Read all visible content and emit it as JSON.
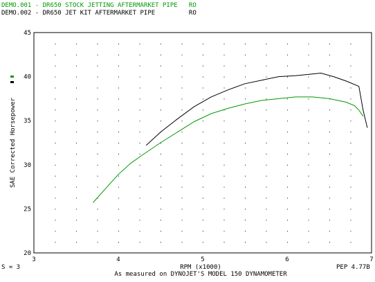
{
  "legend": [
    {
      "id": "DEMO.001",
      "text": "DEMO.001 - DR650 STOCK JETTING AFTERMARKET PIPE   RO",
      "color": "#009900"
    },
    {
      "id": "DEMO.002",
      "text": "DEMO.002 - DR650 JET KIT AFTERMARKET PIPE         RO",
      "color": "#000000"
    }
  ],
  "footer": {
    "smoothing": "S = 3",
    "pep": "PEP 4.77B",
    "caption": "As measured on DYNOJET'S MODEL 150 DYNAMOMETER"
  },
  "chart_data": {
    "type": "line",
    "xlabel": "RPM (x1000)",
    "ylabel": "SAE Corrected Horsepower",
    "xlim": [
      3,
      7
    ],
    "ylim": [
      20,
      45
    ],
    "xticks": [
      3,
      4,
      5,
      6,
      7
    ],
    "yticks": [
      20,
      25,
      30,
      35,
      40,
      45
    ],
    "grid": "dotted",
    "series": [
      {
        "name": "DEMO.001",
        "color": "#009900",
        "points": [
          [
            3.7,
            25.7
          ],
          [
            3.85,
            27.3
          ],
          [
            4.0,
            28.9
          ],
          [
            4.15,
            30.2
          ],
          [
            4.3,
            31.2
          ],
          [
            4.5,
            32.5
          ],
          [
            4.7,
            33.7
          ],
          [
            4.9,
            34.9
          ],
          [
            5.1,
            35.8
          ],
          [
            5.3,
            36.4
          ],
          [
            5.5,
            36.9
          ],
          [
            5.7,
            37.3
          ],
          [
            5.9,
            37.5
          ],
          [
            6.1,
            37.7
          ],
          [
            6.3,
            37.7
          ],
          [
            6.5,
            37.5
          ],
          [
            6.7,
            37.1
          ],
          [
            6.8,
            36.7
          ],
          [
            6.85,
            36.2
          ],
          [
            6.9,
            35.5
          ]
        ]
      },
      {
        "name": "DEMO.002",
        "color": "#000000",
        "points": [
          [
            4.33,
            32.2
          ],
          [
            4.5,
            33.7
          ],
          [
            4.7,
            35.2
          ],
          [
            4.9,
            36.6
          ],
          [
            5.1,
            37.7
          ],
          [
            5.3,
            38.5
          ],
          [
            5.5,
            39.2
          ],
          [
            5.7,
            39.6
          ],
          [
            5.9,
            40.0
          ],
          [
            6.1,
            40.1
          ],
          [
            6.3,
            40.3
          ],
          [
            6.4,
            40.4
          ],
          [
            6.55,
            40.0
          ],
          [
            6.7,
            39.5
          ],
          [
            6.85,
            38.9
          ],
          [
            6.9,
            36.2
          ],
          [
            6.95,
            34.2
          ]
        ]
      }
    ]
  }
}
